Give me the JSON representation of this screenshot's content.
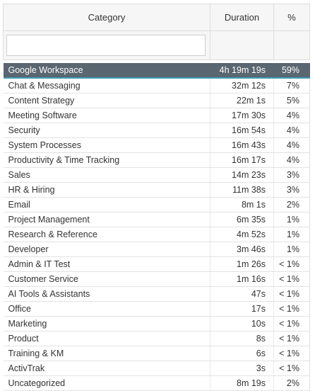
{
  "headers": {
    "category": "Category",
    "duration": "Duration",
    "percent": "%"
  },
  "filter": {
    "value": "",
    "placeholder": ""
  },
  "rows": [
    {
      "category": "Google Workspace",
      "duration": "4h 19m 19s",
      "percent": "59%",
      "selected": true
    },
    {
      "category": "Chat & Messaging",
      "duration": "32m 12s",
      "percent": "7%"
    },
    {
      "category": "Content Strategy",
      "duration": "22m 1s",
      "percent": "5%"
    },
    {
      "category": "Meeting Software",
      "duration": "17m 30s",
      "percent": "4%"
    },
    {
      "category": "Security",
      "duration": "16m 54s",
      "percent": "4%"
    },
    {
      "category": "System Processes",
      "duration": "16m 43s",
      "percent": "4%"
    },
    {
      "category": "Productivity & Time Tracking",
      "duration": "16m 17s",
      "percent": "4%"
    },
    {
      "category": "Sales",
      "duration": "14m 23s",
      "percent": "3%"
    },
    {
      "category": "HR & Hiring",
      "duration": "11m 38s",
      "percent": "3%"
    },
    {
      "category": "Email",
      "duration": "8m 1s",
      "percent": "2%"
    },
    {
      "category": "Project Management",
      "duration": "6m 35s",
      "percent": "1%"
    },
    {
      "category": "Research & Reference",
      "duration": "4m 52s",
      "percent": "1%"
    },
    {
      "category": "Developer",
      "duration": "3m 46s",
      "percent": "1%"
    },
    {
      "category": "Admin & IT Test",
      "duration": "1m 26s",
      "percent": "< 1%"
    },
    {
      "category": "Customer Service",
      "duration": "1m 16s",
      "percent": "< 1%"
    },
    {
      "category": "AI Tools & Assistants",
      "duration": "47s",
      "percent": "< 1%"
    },
    {
      "category": "Office",
      "duration": "17s",
      "percent": "< 1%"
    },
    {
      "category": "Marketing",
      "duration": "10s",
      "percent": "< 1%"
    },
    {
      "category": "Product",
      "duration": "8s",
      "percent": "< 1%"
    },
    {
      "category": "Training & KM",
      "duration": "6s",
      "percent": "< 1%"
    },
    {
      "category": "ActivTrak",
      "duration": "3s",
      "percent": "< 1%"
    },
    {
      "category": "Uncategorized",
      "duration": "8m 19s",
      "percent": "2%"
    }
  ]
}
